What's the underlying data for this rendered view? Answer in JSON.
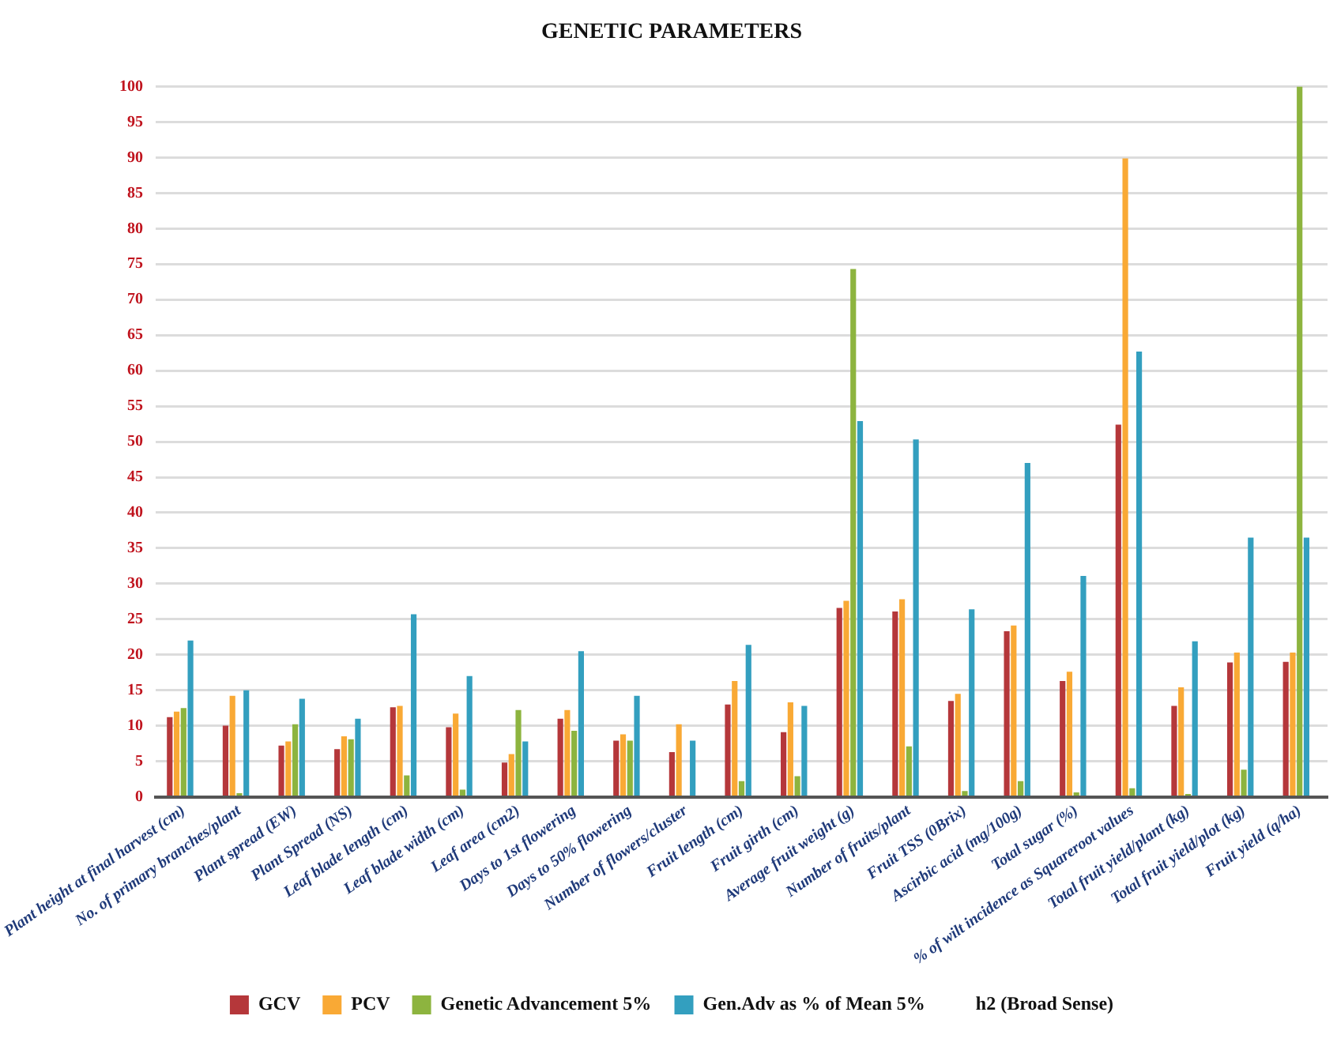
{
  "chart_data": {
    "type": "bar",
    "title": "GENETIC PARAMETERS",
    "categories": [
      "Plant height at final harvest (cm)",
      "No. of primary branches/plant",
      "Plant spread (EW)",
      "Plant Spread (NS)",
      "Leaf blade length (cm)",
      "Leaf blade width (cm)",
      "Leaf area (cm2)",
      "Days to 1st flowering",
      "Days to 50% flowering",
      "Number of flowers/cluster",
      "Fruit length (cm)",
      "Fruit girth (cm)",
      "Average fruit weight (g)",
      "Number of fruits/plant",
      "Fruit TSS (0Brix)",
      "Ascirbic acid (mg/100g)",
      "Total sugar (%)",
      "% of wilt incidence as Squareroot values",
      "Total fruit yield/plant (kg)",
      "Total fruit yield/plot (kg)",
      "Fruit yield (q/ha)"
    ],
    "series": [
      {
        "name": "GCV",
        "color": "#b5373a",
        "values": [
          11.2,
          10,
          7.2,
          6.7,
          12.6,
          9.8,
          4.8,
          11,
          7.9,
          6.3,
          13,
          9.1,
          26.6,
          26.1,
          13.5,
          23.3,
          16.3,
          52.4,
          12.8,
          18.9,
          19
        ]
      },
      {
        "name": "PCV",
        "color": "#f9a935",
        "values": [
          12,
          14.2,
          7.8,
          8.5,
          12.8,
          11.7,
          6,
          12.2,
          8.8,
          10.2,
          16.3,
          13.3,
          27.6,
          27.8,
          14.5,
          24.1,
          17.6,
          89.9,
          15.4,
          20.3,
          20.3
        ]
      },
      {
        "name": "Genetic Advancement 5%",
        "color": "#8db43f",
        "values": [
          12.5,
          0.5,
          10.2,
          8.1,
          3,
          1,
          12.2,
          9.3,
          7.9,
          null,
          2.2,
          2.9,
          74.3,
          7.1,
          0.8,
          2.2,
          0.6,
          1.2,
          0.4,
          3.8,
          100
        ]
      },
      {
        "name": "Gen.Adv as % of Mean 5%",
        "color": "#339fbf",
        "values": [
          22,
          15,
          13.8,
          11,
          25.7,
          17,
          7.8,
          20.5,
          14.2,
          7.9,
          21.4,
          12.8,
          52.9,
          50.3,
          26.4,
          47,
          31.1,
          62.7,
          21.9,
          36.5,
          36.5
        ]
      },
      {
        "name": "h2 (Broad Sense)",
        "values": [
          null,
          null,
          null,
          null,
          null,
          null,
          null,
          null,
          null,
          null,
          null,
          null,
          null,
          null,
          null,
          null,
          null,
          null,
          null,
          null,
          null
        ]
      }
    ],
    "ylim": [
      0,
      100
    ],
    "yticks": [
      0,
      5,
      10,
      15,
      20,
      25,
      30,
      35,
      40,
      45,
      50,
      55,
      60,
      65,
      70,
      75,
      80,
      85,
      90,
      95,
      100
    ],
    "grid": "y",
    "legend": "bottom"
  }
}
